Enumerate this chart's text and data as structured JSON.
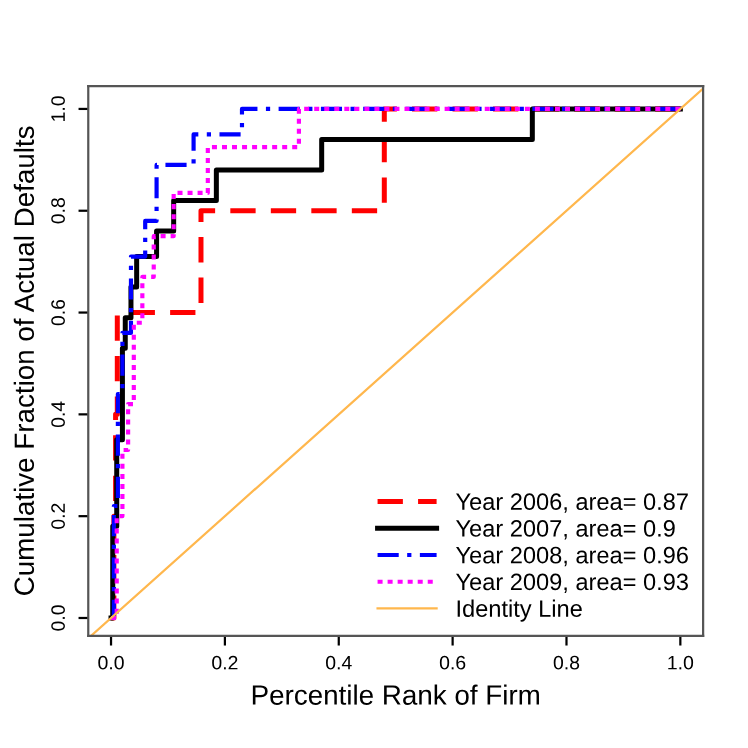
{
  "chart_data": {
    "type": "step",
    "xlabel": "Percentile Rank of Firm",
    "ylabel": "Cumulative Fraction of Actual Defaults",
    "xlim": [
      -0.04,
      1.04
    ],
    "ylim": [
      -0.035,
      1.045
    ],
    "xticks": [
      {
        "value": 0,
        "label": "0.0"
      },
      0.2,
      0.4,
      0.6,
      0.8,
      {
        "value": 1,
        "label": "1.0"
      }
    ],
    "yticks": [
      {
        "value": 0,
        "label": "0.0"
      },
      0.2,
      0.4,
      0.6,
      0.8,
      {
        "value": 1,
        "label": "1.0"
      }
    ],
    "grid": false,
    "legend": "bottom right",
    "series": [
      {
        "name": "Year 2006, area= 0.87",
        "color": "#ff0000",
        "line_style": "dashed",
        "x": [
          0,
          0.005,
          0.008,
          0.011,
          0.158,
          0.48,
          1.0
        ],
        "values": [
          0,
          0.2,
          0.4,
          0.6,
          0.8,
          1.0,
          1.0
        ]
      },
      {
        "name": "Year 2007, area= 0.9",
        "color": "#000000",
        "line_style": "solid",
        "x": [
          0,
          0.003,
          0.01,
          0.02,
          0.025,
          0.035,
          0.045,
          0.08,
          0.11,
          0.185,
          0.37,
          0.74,
          1.0
        ],
        "values": [
          0,
          0.18,
          0.35,
          0.53,
          0.59,
          0.65,
          0.71,
          0.76,
          0.82,
          0.88,
          0.94,
          1.0,
          1.0
        ]
      },
      {
        "name": "Year 2008, area= 0.96",
        "color": "#0000ff",
        "line_style": "dashdot",
        "x": [
          0,
          0.005,
          0.012,
          0.02,
          0.035,
          0.06,
          0.08,
          0.145,
          0.23,
          1.0
        ],
        "values": [
          0,
          0.22,
          0.44,
          0.56,
          0.71,
          0.78,
          0.89,
          0.95,
          1.0,
          1.0
        ]
      },
      {
        "name": "Year 2009, area= 0.93",
        "color": "#ff00ff",
        "line_style": "dotted",
        "x": [
          0,
          0.01,
          0.02,
          0.03,
          0.04,
          0.055,
          0.075,
          0.11,
          0.17,
          0.33,
          1.0
        ],
        "values": [
          0,
          0.2,
          0.33,
          0.42,
          0.58,
          0.67,
          0.75,
          0.835,
          0.925,
          1.0,
          1.0
        ]
      },
      {
        "name": "Identity Line",
        "type": "line",
        "color": "#ffb74d",
        "line_style": "solid",
        "x": [
          -0.035,
          1.04
        ],
        "values": [
          -0.035,
          1.04
        ]
      }
    ]
  }
}
